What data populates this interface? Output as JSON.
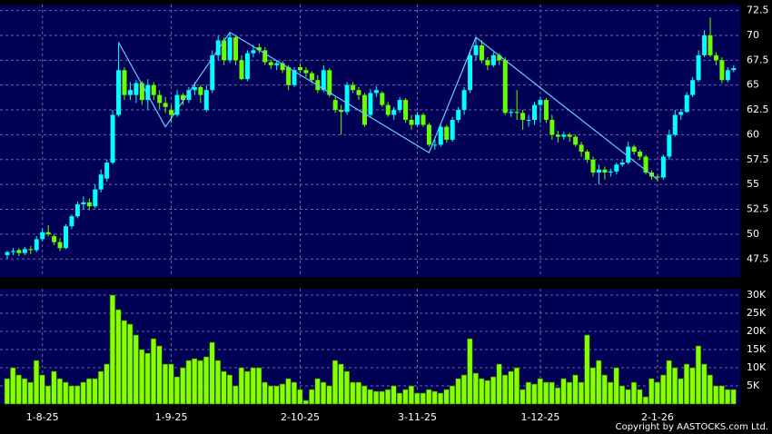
{
  "chart_data": {
    "type": "candlestick",
    "categories": [
      null,
      null,
      null,
      null,
      null,
      null,
      "1-8-25",
      null,
      null,
      null,
      null,
      null,
      null,
      null,
      null,
      null,
      null,
      null,
      null,
      null,
      null,
      null,
      null,
      null,
      null,
      null,
      null,
      null,
      "1-9-25",
      null,
      null,
      null,
      null,
      null,
      null,
      null,
      null,
      null,
      null,
      null,
      null,
      null,
      null,
      null,
      null,
      null,
      null,
      null,
      null,
      null,
      "2-10-25",
      null,
      null,
      null,
      null,
      null,
      null,
      null,
      null,
      null,
      null,
      null,
      null,
      null,
      null,
      null,
      null,
      null,
      null,
      null,
      "3-11-25",
      null,
      null,
      null,
      null,
      null,
      null,
      null,
      null,
      null,
      null,
      null,
      null,
      null,
      null,
      null,
      null,
      null,
      null,
      null,
      null,
      "1-12-25",
      null,
      null,
      null,
      null,
      null,
      null,
      null,
      null,
      null,
      null,
      null,
      null,
      null,
      null,
      null,
      null,
      null,
      null,
      null,
      "2-1-26",
      null,
      null,
      null,
      null,
      null,
      null,
      null,
      null,
      null,
      null,
      null,
      null,
      null
    ],
    "open": [
      47.9,
      48.2,
      48.4,
      48.1,
      48.5,
      48.4,
      49.5,
      50.2,
      49.8,
      49.2,
      48.6,
      50.8,
      51.8,
      53.0,
      53.2,
      52.8,
      54.5,
      55.6,
      57.2,
      62.0,
      66.5,
      64.0,
      64.0,
      65.2,
      63.5,
      65.0,
      64.0,
      63.2,
      62.5,
      62.0,
      64.0,
      63.5,
      64.5,
      64.8,
      62.5,
      64.5,
      68.0,
      69.5,
      67.5,
      69.8,
      67.5,
      65.6,
      68.2,
      68.8,
      68.5,
      67.3,
      67.0,
      67.2,
      66.8,
      65.0,
      66.8,
      66.5,
      66.2,
      65.5,
      64.5,
      66.5,
      63.5,
      62.5,
      62.3,
      65.0,
      64.5,
      64.0,
      62.0,
      64.2,
      64.2,
      63.0,
      62.0,
      62.5,
      63.5,
      61.5,
      61.0,
      62.0,
      61.0,
      59.0,
      59.0,
      60.8,
      59.5,
      61.5,
      62.5,
      64.5,
      68.0,
      69.0,
      67.5,
      67.0,
      68.0,
      67.5,
      62.2,
      62.3,
      62.2,
      61.5,
      61.5,
      63.0,
      63.5,
      61.5,
      60.0,
      59.8,
      60.0,
      59.8,
      59.0,
      58.3,
      57.5,
      56.2,
      56.5,
      56.2,
      56.3,
      57.0,
      57.2,
      58.8,
      58.3,
      57.8,
      56.2,
      55.8,
      55.7,
      57.8,
      60.0,
      62.0,
      62.3,
      64.0,
      65.5,
      68.0,
      70.0,
      68.0,
      67.5,
      65.5,
      66.5
    ],
    "high": [
      48.3,
      48.6,
      48.6,
      48.7,
      48.8,
      49.8,
      50.6,
      50.9,
      50.0,
      49.6,
      51.0,
      52.0,
      53.3,
      53.8,
      53.6,
      55.0,
      56.5,
      57.5,
      62.5,
      69.3,
      66.8,
      65.3,
      65.5,
      65.4,
      65.6,
      65.3,
      64.5,
      63.8,
      63.0,
      64.5,
      64.2,
      64.8,
      65.3,
      65.0,
      65.0,
      68.5,
      70.0,
      69.8,
      70.3,
      70.0,
      68.0,
      68.5,
      69.0,
      69.2,
      68.8,
      67.6,
      67.5,
      67.4,
      67.0,
      66.8,
      67.2,
      66.8,
      66.4,
      66.0,
      67.0,
      66.7,
      63.8,
      63.0,
      65.3,
      65.3,
      64.8,
      64.2,
      64.6,
      64.9,
      64.4,
      63.3,
      62.8,
      63.8,
      63.7,
      62.0,
      62.3,
      62.2,
      61.2,
      59.5,
      61.0,
      61.0,
      61.8,
      62.8,
      64.8,
      68.5,
      69.8,
      69.5,
      67.8,
      68.3,
      68.2,
      67.8,
      62.6,
      64.5,
      62.5,
      62.0,
      63.3,
      63.8,
      63.7,
      62.0,
      60.4,
      60.3,
      60.2,
      60.0,
      59.3,
      58.5,
      57.8,
      57.0,
      56.8,
      56.6,
      57.2,
      57.5,
      59.3,
      59.0,
      58.5,
      58.0,
      56.4,
      56.0,
      58.0,
      60.5,
      62.5,
      62.6,
      64.3,
      65.8,
      68.5,
      70.5,
      71.8,
      68.3,
      67.8,
      66.8,
      67.0
    ],
    "low": [
      47.5,
      47.9,
      47.8,
      47.9,
      48.0,
      48.2,
      49.3,
      49.8,
      48.9,
      48.3,
      48.5,
      50.5,
      51.6,
      52.5,
      52.4,
      52.6,
      54.2,
      55.3,
      57.0,
      61.8,
      63.5,
      63.5,
      63.2,
      63.0,
      62.5,
      63.5,
      62.6,
      62.2,
      61.2,
      61.8,
      63.0,
      63.2,
      64.0,
      63.2,
      62.3,
      64.2,
      67.5,
      67.0,
      67.2,
      67.0,
      65.5,
      65.4,
      67.8,
      68.2,
      67.0,
      66.6,
      66.5,
      66.2,
      64.5,
      64.8,
      66.2,
      65.8,
      65.2,
      64.2,
      64.3,
      63.8,
      62.2,
      60.0,
      62.0,
      64.2,
      63.5,
      60.8,
      61.8,
      63.8,
      62.8,
      61.8,
      61.5,
      62.2,
      61.2,
      60.5,
      60.8,
      60.8,
      58.8,
      58.5,
      58.8,
      59.2,
      59.3,
      61.2,
      62.0,
      64.2,
      67.5,
      67.2,
      66.5,
      66.8,
      67.0,
      62.0,
      61.8,
      61.5,
      60.5,
      60.8,
      61.0,
      61.2,
      61.2,
      59.5,
      59.2,
      59.5,
      59.3,
      58.8,
      57.8,
      57.2,
      55.8,
      55.0,
      55.5,
      55.8,
      56.0,
      56.8,
      57.0,
      58.0,
      57.5,
      56.0,
      55.5,
      55.3,
      55.5,
      57.5,
      59.8,
      61.5,
      62.2,
      63.8,
      65.3,
      67.8,
      67.8,
      67.0,
      65.2,
      65.3,
      66.3
    ],
    "close": [
      48.2,
      48.3,
      48.1,
      48.5,
      48.4,
      49.5,
      50.2,
      50.0,
      49.2,
      48.6,
      50.8,
      51.8,
      53.0,
      53.2,
      52.8,
      54.5,
      56.0,
      57.2,
      62.0,
      66.5,
      64.0,
      64.5,
      65.2,
      63.5,
      65.0,
      64.0,
      63.2,
      62.8,
      62.0,
      64.0,
      63.5,
      64.5,
      64.8,
      64.0,
      64.5,
      68.0,
      69.5,
      67.5,
      69.8,
      67.5,
      65.6,
      68.2,
      68.5,
      68.5,
      67.3,
      67.0,
      67.2,
      66.5,
      65.0,
      66.5,
      66.5,
      66.2,
      65.5,
      64.5,
      66.5,
      64.0,
      62.5,
      62.3,
      65.0,
      64.5,
      64.0,
      61.0,
      64.2,
      64.5,
      63.0,
      62.0,
      62.5,
      63.5,
      61.5,
      61.0,
      62.0,
      61.0,
      59.0,
      59.0,
      60.8,
      59.5,
      61.5,
      62.5,
      64.5,
      68.0,
      69.0,
      67.5,
      67.0,
      68.0,
      67.5,
      62.2,
      62.3,
      62.2,
      61.5,
      61.5,
      63.0,
      63.5,
      61.5,
      60.0,
      59.8,
      60.0,
      59.8,
      59.0,
      58.3,
      57.5,
      56.2,
      56.5,
      56.2,
      56.3,
      57.0,
      57.2,
      58.8,
      58.3,
      57.8,
      56.2,
      55.8,
      55.7,
      57.8,
      60.0,
      62.0,
      62.3,
      64.0,
      65.5,
      68.0,
      70.0,
      68.0,
      67.5,
      65.5,
      66.5,
      66.7
    ],
    "volume": [
      7000,
      10000,
      8000,
      7000,
      6000,
      12000,
      8000,
      5000,
      9000,
      7000,
      6000,
      5000,
      5000,
      6000,
      7000,
      7000,
      9000,
      11000,
      30000,
      26000,
      23000,
      22000,
      19000,
      15000,
      14000,
      18000,
      16000,
      11000,
      11000,
      7500,
      10000,
      12000,
      12500,
      12000,
      13000,
      17000,
      12000,
      9000,
      8000,
      5000,
      10000,
      9000,
      10000,
      10000,
      6000,
      5000,
      5000,
      5500,
      7000,
      6000,
      4000,
      1000,
      4000,
      7000,
      6000,
      5000,
      12000,
      11000,
      9000,
      6000,
      6000,
      5000,
      4000,
      3500,
      3500,
      4000,
      5000,
      3000,
      4000,
      5000,
      3000,
      3000,
      4000,
      3500,
      3000,
      4000,
      5000,
      7000,
      8000,
      18000,
      8500,
      7000,
      6500,
      7500,
      11000,
      8000,
      9000,
      10000,
      4000,
      6000,
      5500,
      7000,
      6000,
      6000,
      4500,
      7000,
      6000,
      8000,
      6000,
      19000,
      10000,
      12000,
      8000,
      6000,
      10000,
      5000,
      4000,
      6000,
      4000,
      2000,
      7000,
      6000,
      8000,
      12000,
      10000,
      7000,
      11000,
      10000,
      16000,
      11000,
      8000,
      5000,
      5000,
      4000,
      4000
    ],
    "up_color": "#00ffff",
    "down_color": "#66ff00",
    "volume_color": "#88ff00",
    "trend_color": "#66ccff",
    "trendline": {
      "x": [
        19,
        27,
        38,
        72,
        80,
        111
      ],
      "values": [
        69.3,
        60.8,
        70.3,
        58.2,
        69.8,
        55.5
      ]
    },
    "ylim": [
      45.7,
      73.1
    ],
    "yticks": [
      47.5,
      50,
      52.5,
      55,
      57.5,
      60,
      62.5,
      65,
      67.5,
      70,
      72.5
    ],
    "volume_ylim": [
      0,
      31750
    ],
    "volume_ticks": [
      {
        "value": 5000,
        "label": "5K"
      },
      {
        "value": 10000,
        "label": "10K"
      },
      {
        "value": 15000,
        "label": "15K"
      },
      {
        "value": 20000,
        "label": "20K"
      },
      {
        "value": 25000,
        "label": "25K"
      },
      {
        "value": 30000,
        "label": "30K"
      }
    ],
    "grid": true,
    "copyright": "Copyright by AASTOCKS.com Ltd."
  }
}
